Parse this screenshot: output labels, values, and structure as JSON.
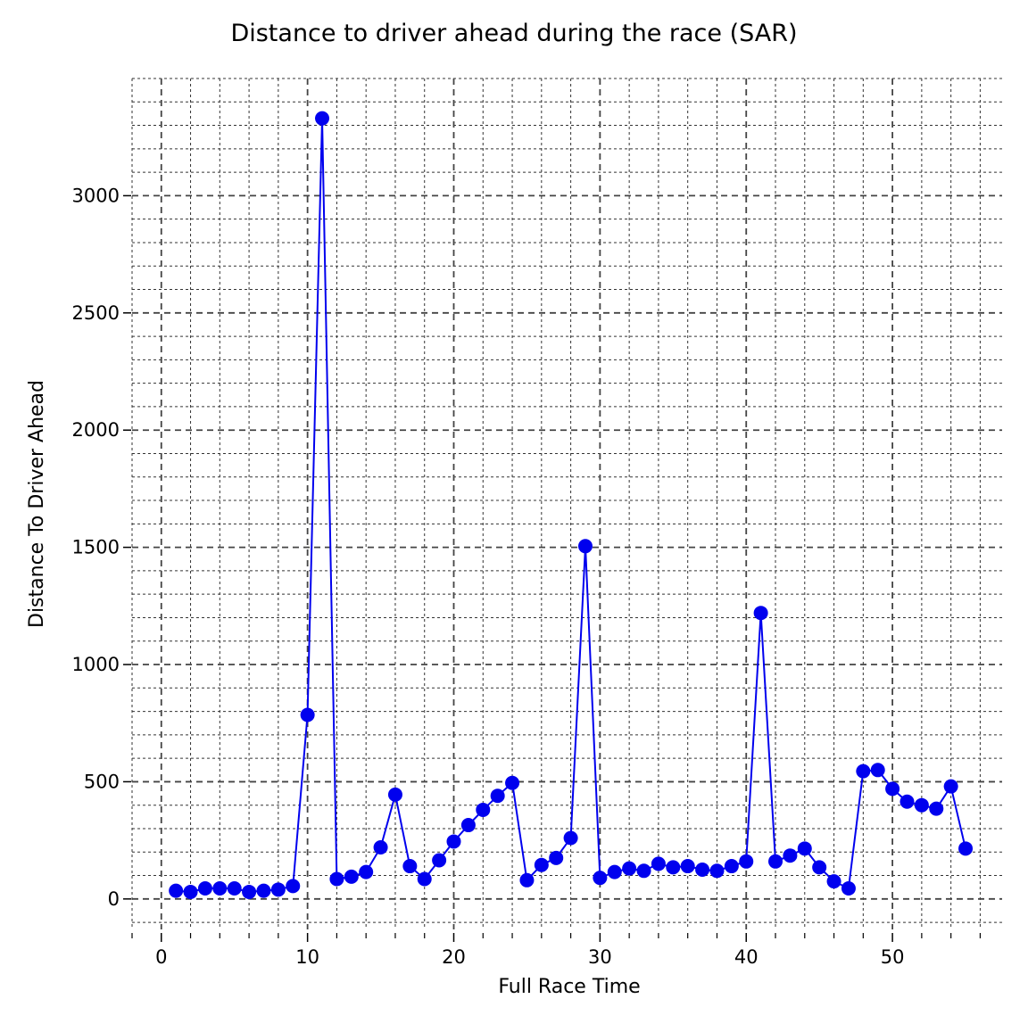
{
  "chart_data": {
    "type": "line",
    "title": "Distance to driver ahead during the race (SAR)",
    "xlabel": "Full Race Time",
    "ylabel": "Distance To Driver Ahead",
    "xlim": [
      -2,
      57.5
    ],
    "ylim": [
      -130,
      3500
    ],
    "x_major_ticks": [
      0,
      10,
      20,
      30,
      40,
      50
    ],
    "x_tick_labels": [
      "0",
      "10",
      "20",
      "30",
      "40",
      "50"
    ],
    "x_minor_step": 2,
    "y_major_ticks": [
      0,
      500,
      1000,
      1500,
      2000,
      2500,
      3000
    ],
    "y_tick_labels": [
      "0",
      "500",
      "1000",
      "1500",
      "2000",
      "2500",
      "3000"
    ],
    "y_minor_step": 100,
    "grid": true,
    "grid_style": "dashed",
    "series": [
      {
        "color": "#0000ee",
        "marker": "circle",
        "x": [
          1,
          2,
          3,
          4,
          5,
          6,
          7,
          8,
          9,
          10,
          11,
          12,
          13,
          14,
          15,
          16,
          17,
          18,
          19,
          20,
          21,
          22,
          23,
          24,
          25,
          26,
          27,
          28,
          29,
          30,
          31,
          32,
          33,
          34,
          35,
          36,
          37,
          38,
          39,
          40,
          41,
          42,
          43,
          44,
          45,
          46,
          47,
          48,
          49,
          50,
          51,
          52,
          53,
          54,
          55
        ],
        "y": [
          35,
          30,
          45,
          45,
          45,
          30,
          35,
          40,
          55,
          785,
          3330,
          85,
          95,
          115,
          220,
          445,
          140,
          85,
          165,
          245,
          315,
          380,
          440,
          495,
          80,
          145,
          175,
          260,
          1505,
          90,
          115,
          130,
          120,
          150,
          135,
          140,
          125,
          120,
          140,
          160,
          1220,
          160,
          185,
          215,
          135,
          75,
          45,
          545,
          550,
          470,
          415,
          400,
          385,
          480,
          215
        ]
      }
    ]
  }
}
